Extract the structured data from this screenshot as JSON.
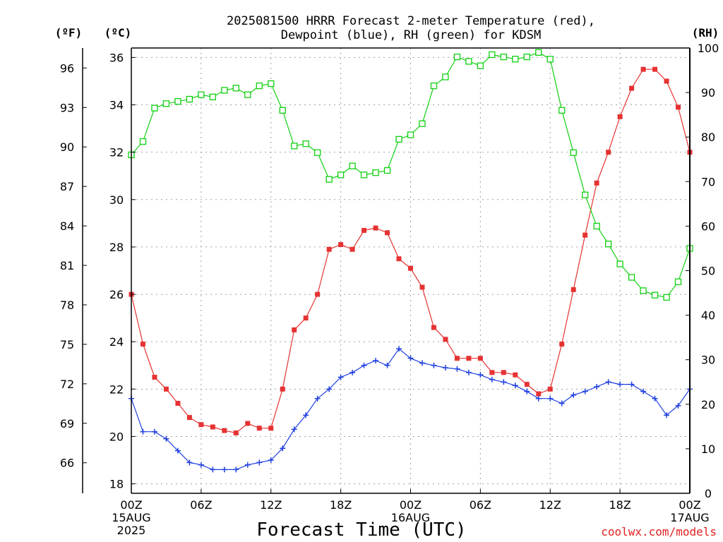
{
  "chart_data": {
    "type": "line",
    "title_lines": [
      "2025081500 HRRR Forecast 2-meter Temperature (red),",
      "Dewpoint (blue), RH (green) for KDSM"
    ],
    "xlabel": "Forecast Time (UTC)",
    "credit": "coolwx.com/models",
    "units": {
      "fahrenheit": "(ºF)",
      "celsius": "(ºC)",
      "rh": "(RH)"
    },
    "x_ticks": [
      {
        "hour": 0,
        "lines": [
          "00Z",
          "15AUG",
          "2025"
        ]
      },
      {
        "hour": 6,
        "lines": [
          "06Z"
        ]
      },
      {
        "hour": 12,
        "lines": [
          "12Z"
        ]
      },
      {
        "hour": 18,
        "lines": [
          "18Z"
        ]
      },
      {
        "hour": 24,
        "lines": [
          "00Z",
          "16AUG"
        ]
      },
      {
        "hour": 30,
        "lines": [
          "06Z"
        ]
      },
      {
        "hour": 36,
        "lines": [
          "12Z"
        ]
      },
      {
        "hour": 42,
        "lines": [
          "18Z"
        ]
      },
      {
        "hour": 48,
        "lines": [
          "00Z",
          "17AUG"
        ]
      }
    ],
    "xlim": [
      0,
      48
    ],
    "celsius_ticks": [
      18,
      20,
      22,
      24,
      26,
      28,
      30,
      32,
      34,
      36
    ],
    "ylim_celsius": [
      17.6,
      36.4
    ],
    "fahrenheit_ticks": [
      66,
      69,
      72,
      75,
      78,
      81,
      84,
      87,
      90,
      93,
      96
    ],
    "rh_ticks": [
      0,
      10,
      20,
      30,
      40,
      50,
      60,
      70,
      80,
      90,
      100
    ],
    "ylim_rh": [
      0,
      100
    ],
    "colors": {
      "temperature": "#e63232",
      "dewpoint": "#2040e0",
      "rh": "#10d010",
      "grid": "#a0a0a0"
    },
    "series": [
      {
        "key": "temperature",
        "name": "Temperature",
        "marker": "filled-square",
        "values": [
          26.0,
          23.9,
          22.5,
          22.0,
          21.4,
          20.8,
          20.5,
          20.4,
          20.25,
          20.15,
          20.55,
          20.35,
          20.35,
          22.0,
          24.5,
          25.0,
          26.0,
          27.9,
          28.1,
          27.9,
          28.7,
          28.8,
          28.6,
          27.5,
          27.1,
          26.3,
          24.6,
          24.1,
          23.3,
          23.3,
          23.3,
          22.7,
          22.7,
          22.6,
          22.2,
          21.8,
          22.0,
          23.9,
          26.2,
          28.5,
          30.7,
          32.0,
          33.5,
          34.7,
          35.5,
          35.5,
          35.0,
          33.9,
          32.0
        ]
      },
      {
        "key": "dewpoint",
        "name": "Dewpoint",
        "marker": "plus",
        "values": [
          21.6,
          20.2,
          20.2,
          19.9,
          19.4,
          18.9,
          18.8,
          18.6,
          18.6,
          18.6,
          18.8,
          18.9,
          19.0,
          19.5,
          20.3,
          20.9,
          21.6,
          22.0,
          22.5,
          22.7,
          23.0,
          23.2,
          23.0,
          23.7,
          23.3,
          23.1,
          23.0,
          22.9,
          22.85,
          22.7,
          22.6,
          22.4,
          22.3,
          22.15,
          21.9,
          21.6,
          21.6,
          21.4,
          21.75,
          21.9,
          22.1,
          22.3,
          22.2,
          22.2,
          21.9,
          21.6,
          20.9,
          21.3,
          22.0
        ]
      },
      {
        "key": "rh",
        "name": "RH",
        "marker": "open-square",
        "values": [
          76,
          79,
          86.5,
          87.5,
          88,
          88.5,
          89.5,
          89,
          90.5,
          91,
          89.5,
          91.5,
          92,
          86,
          78,
          78.5,
          76.5,
          70.5,
          71.5,
          73.5,
          71.5,
          72,
          72.5,
          79.5,
          80.5,
          83,
          91.5,
          93.5,
          98,
          97,
          96,
          98.5,
          98,
          97.5,
          98,
          99,
          97.5,
          86,
          76.5,
          67,
          60,
          56,
          51.5,
          48.5,
          45.5,
          44.5,
          44,
          47.5,
          55
        ]
      }
    ]
  }
}
